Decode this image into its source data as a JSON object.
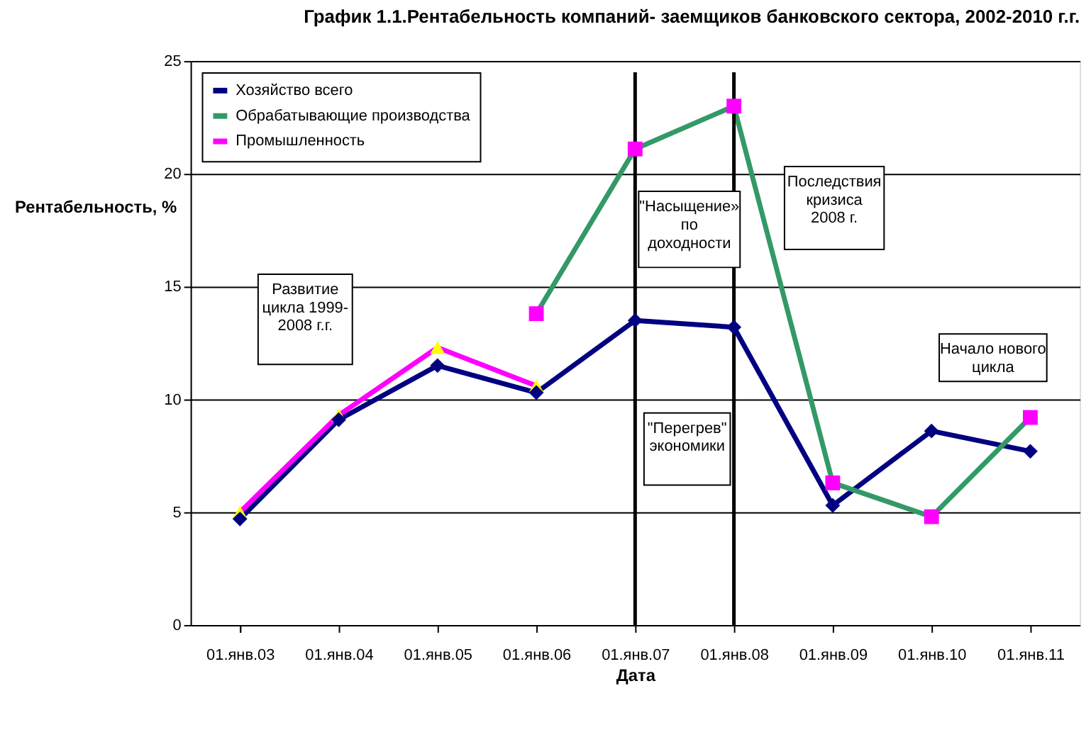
{
  "chart_data": {
    "type": "line",
    "title": "График 1.1.Рентабельность компаний- заемщиков банковского сектора, 2002-2010 г.г.",
    "xlabel": "Дата",
    "ylabel": "Рентабельность, %",
    "categories": [
      "01.янв.03",
      "01.янв.04",
      "01.янв.05",
      "01.янв.06",
      "01.янв.07",
      "01.янв.08",
      "01.янв.09",
      "01.янв.10",
      "01.янв.11"
    ],
    "series": [
      {
        "name": "Хозяйство всего",
        "color": "#000080",
        "marker": "diamond",
        "values": [
          4.7,
          9.1,
          11.5,
          10.3,
          13.5,
          13.2,
          5.3,
          8.6,
          7.7
        ]
      },
      {
        "name": "Обрабатывающие производства",
        "color": "#339966",
        "marker": "square",
        "colors": [
          null,
          null,
          null,
          "#ff00ff",
          "#ff00ff",
          "#ff00ff",
          "#ff00ff",
          "#ff00ff",
          "#ff00ff"
        ],
        "values": [
          null,
          null,
          null,
          13.8,
          21.1,
          23.0,
          6.3,
          4.8,
          9.2
        ]
      },
      {
        "name": "Промышленность",
        "color": "#ff00ff",
        "marker": "triangle",
        "colors": [
          "#ffff00",
          "#ffff00",
          "#ffff00",
          "#ffff00",
          null,
          null,
          null,
          null,
          null
        ],
        "values": [
          5.0,
          9.3,
          12.3,
          10.6,
          null,
          null,
          null,
          null,
          null
        ]
      }
    ],
    "ylim": [
      0,
      25
    ],
    "yticks": [
      0,
      5,
      10,
      15,
      20,
      25
    ],
    "grid": "y",
    "legend": "top left",
    "ref_lines": [
      {
        "axis": "x",
        "value": "01.янв.07",
        "color": "#000000"
      },
      {
        "axis": "x",
        "value": "01.янв.08",
        "color": "#000000"
      }
    ],
    "annotations": [
      "Развитие\nцикла 1999-\n2008 г.г.",
      "\"Насыщение»\nпо\nдоходности",
      "\"Перегрев\"\nэкономики",
      "Последствия\nкризиса\n2008 г.",
      "Начало нового\nцикла"
    ]
  }
}
